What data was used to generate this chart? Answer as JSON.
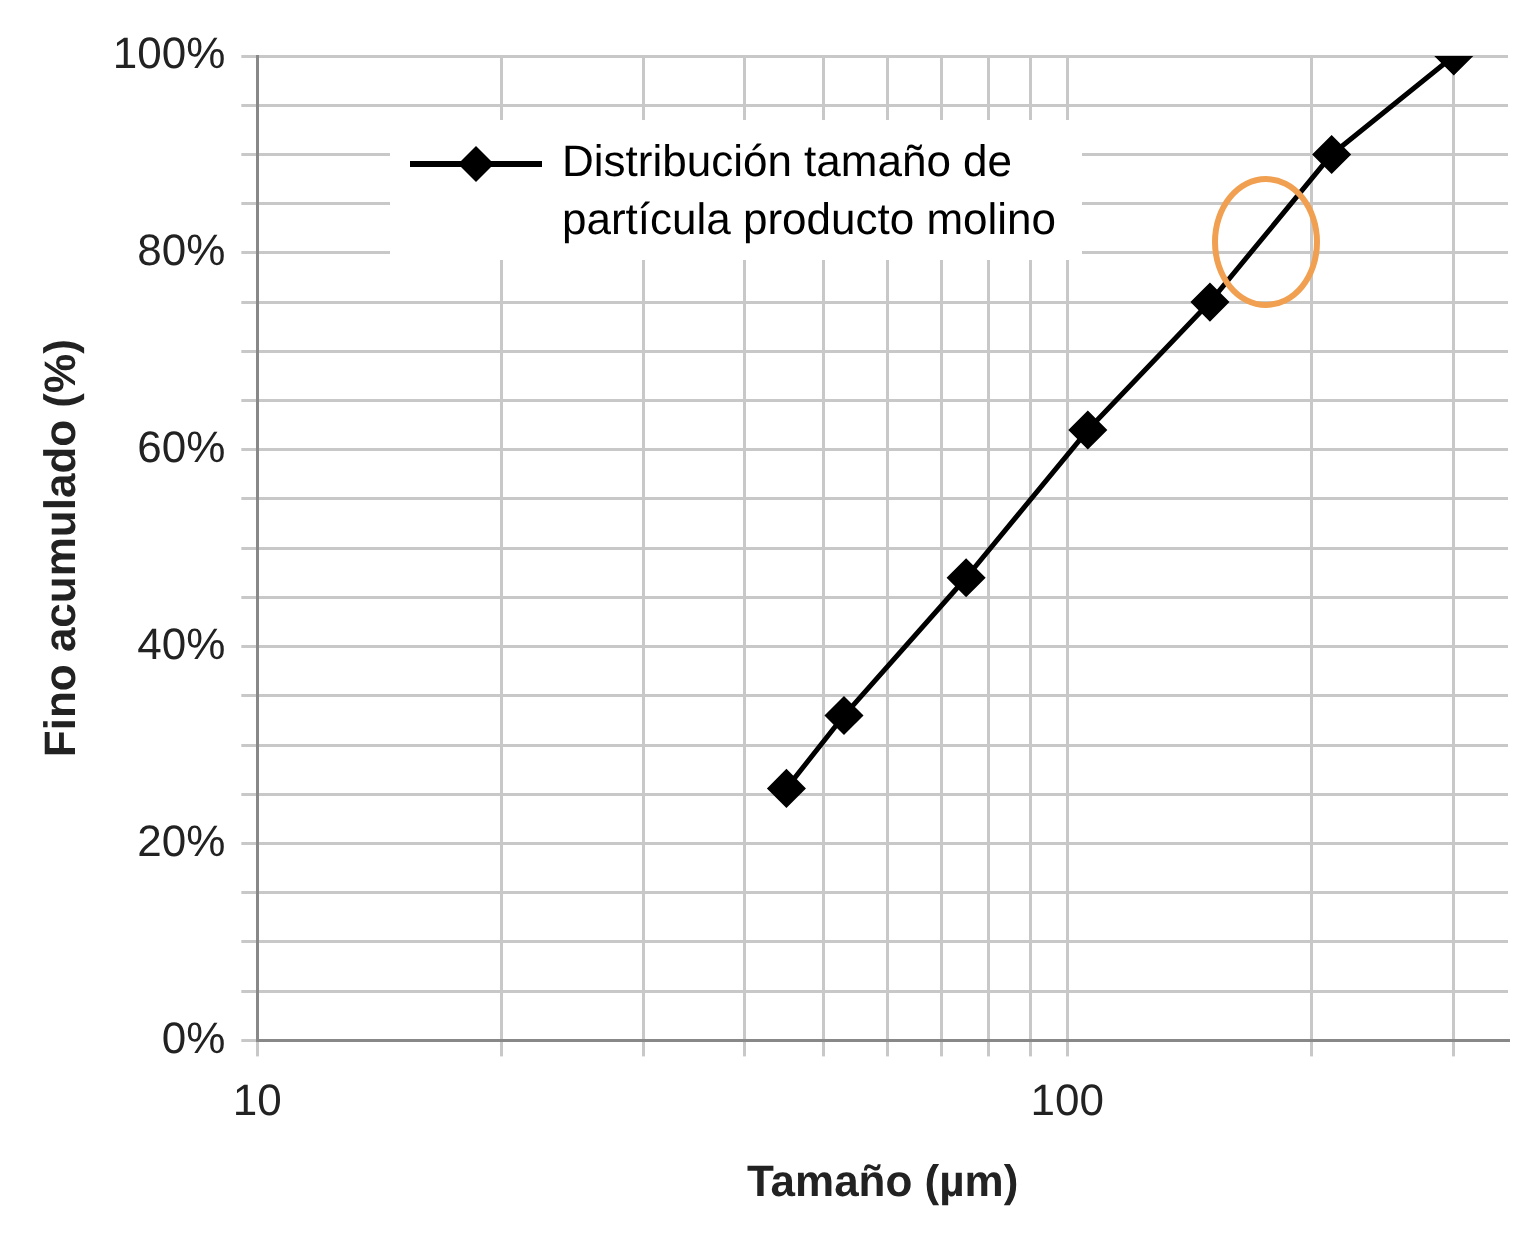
{
  "chart_data": {
    "type": "line",
    "xlabel": "Tamaño (µm)",
    "ylabel": "Fino acumulado (%)",
    "log": "x",
    "xlim": [
      10,
      350
    ],
    "xticks": [
      10,
      {
        "value": 20,
        "label": null
      },
      {
        "value": 30,
        "label": null
      },
      {
        "value": 40,
        "label": null
      },
      {
        "value": 50,
        "label": null
      },
      {
        "value": 60,
        "label": null
      },
      {
        "value": 70,
        "label": null
      },
      {
        "value": 80,
        "label": null
      },
      {
        "value": 90,
        "label": null
      },
      100,
      {
        "value": 200,
        "label": null
      },
      {
        "value": 300,
        "label": null
      }
    ],
    "ylim": [
      0,
      100
    ],
    "yticks": [
      {
        "value": 0,
        "label": "0%"
      },
      {
        "value": 5,
        "label": null
      },
      {
        "value": 10,
        "label": null
      },
      {
        "value": 15,
        "label": null
      },
      {
        "value": 20,
        "label": "20%"
      },
      {
        "value": 25,
        "label": null
      },
      {
        "value": 30,
        "label": null
      },
      {
        "value": 35,
        "label": null
      },
      {
        "value": 40,
        "label": "40%"
      },
      {
        "value": 45,
        "label": null
      },
      {
        "value": 50,
        "label": null
      },
      {
        "value": 55,
        "label": null
      },
      {
        "value": 60,
        "label": "60%"
      },
      {
        "value": 65,
        "label": null
      },
      {
        "value": 70,
        "label": null
      },
      {
        "value": 75,
        "label": null
      },
      {
        "value": 80,
        "label": "80%"
      },
      {
        "value": 85,
        "label": null
      },
      {
        "value": 90,
        "label": null
      },
      {
        "value": 95,
        "label": null
      },
      {
        "value": 100,
        "label": "100%"
      }
    ],
    "grid": true,
    "legend": "top left",
    "marker": "diamond",
    "line_style": "solid",
    "series": [
      {
        "name": "Distribución tamaño de partícula producto molino",
        "color": "#000000",
        "x": [
          45,
          53,
          75,
          106,
          150,
          212,
          300
        ],
        "values": [
          25.6,
          33,
          47,
          62,
          75,
          90,
          100
        ]
      }
    ]
  }
}
